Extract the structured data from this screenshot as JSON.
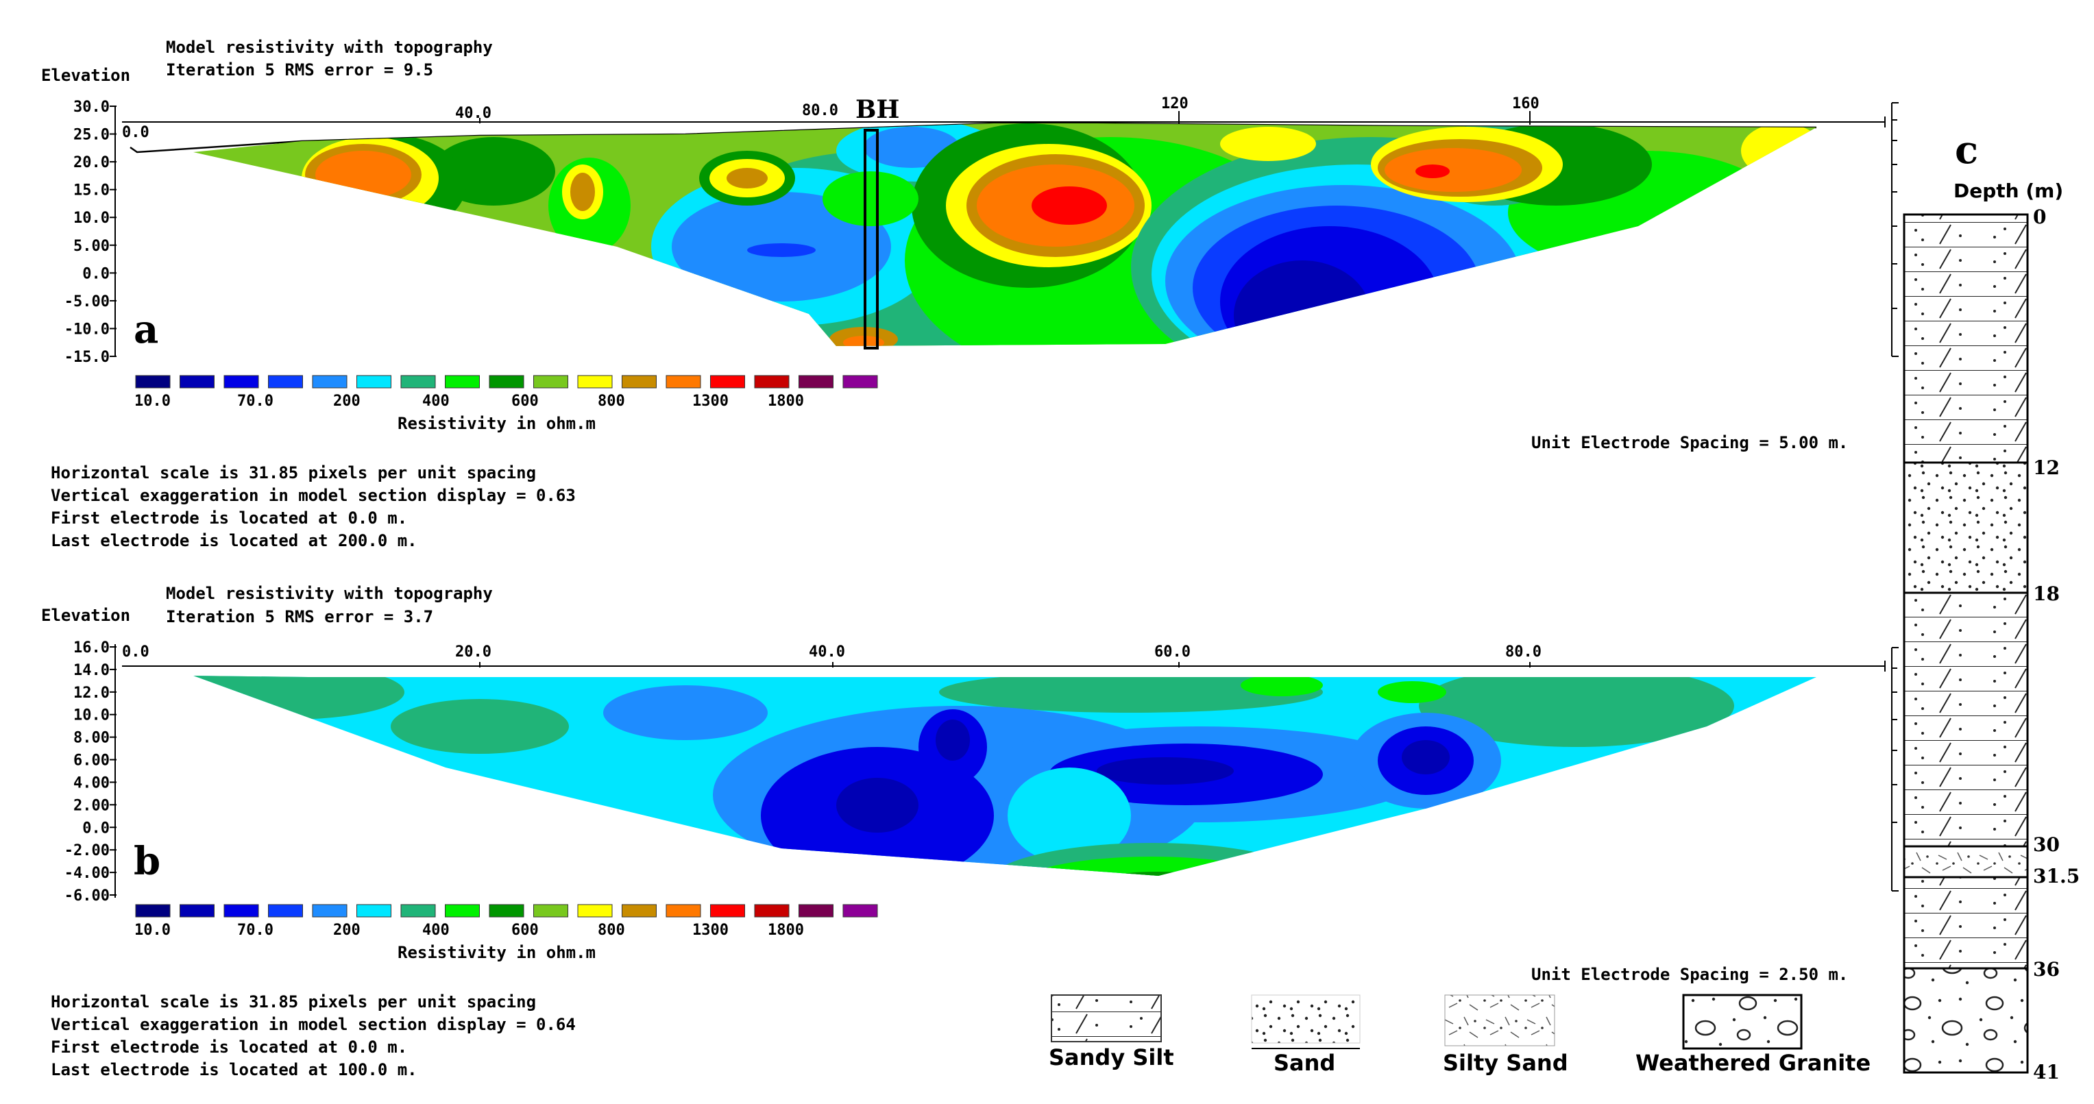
{
  "panel_a": {
    "letter": "a",
    "title": "Model resistivity with topography",
    "iteration": "Iteration 5 RMS error = 9.5",
    "elev_label": "Elevation",
    "y_ticks": [
      "30.0",
      "25.0",
      "20.0",
      "15.0",
      "10.0",
      "5.00",
      "0.0",
      "-5.00",
      "-10.0",
      "-15.0"
    ],
    "x_ticks": [
      "0.0",
      "40.0",
      "80.0",
      "120",
      "160"
    ],
    "bh_label": "BH",
    "cb_labels": [
      "10.0",
      "70.0",
      "200",
      "400",
      "600",
      "800",
      "1300",
      "1800"
    ],
    "cb_title": "Resistivity in ohm.m",
    "spacing": "Unit Electrode Spacing = 5.00 m.",
    "info": [
      "Horizontal scale is 31.85 pixels per unit spacing",
      "Vertical exaggeration in model section display = 0.63",
      "First electrode is located at 0.0  m.",
      "Last electrode is located at 200.0 m."
    ]
  },
  "panel_b": {
    "letter": "b",
    "title": "Model resistivity with topography",
    "iteration": "Iteration 5 RMS error = 3.7",
    "elev_label": "Elevation",
    "y_ticks": [
      "16.0",
      "14.0",
      "12.0",
      "10.0",
      "8.00",
      "6.00",
      "4.00",
      "2.00",
      "0.0",
      "-2.00",
      "-4.00",
      "-6.00"
    ],
    "x_ticks": [
      "0.0",
      "20.0",
      "40.0",
      "60.0",
      "80.0"
    ],
    "cb_labels": [
      "10.0",
      "70.0",
      "200",
      "400",
      "600",
      "800",
      "1300",
      "1800"
    ],
    "cb_title": "Resistivity in ohm.m",
    "spacing": "Unit Electrode Spacing = 2.50 m.",
    "info": [
      "Horizontal scale is 31.85 pixels per unit spacing",
      "Vertical exaggeration in model section display = 0.64",
      "First electrode is located at 0.0  m.",
      "Last electrode is located at 100.0 m."
    ]
  },
  "colorbar_colors": [
    "#000080",
    "#0000b4",
    "#0000e6",
    "#0a3cff",
    "#1e8cff",
    "#00e6ff",
    "#20b478",
    "#00f000",
    "#009600",
    "#78c81e",
    "#ffff00",
    "#c88c00",
    "#ff7800",
    "#ff0000",
    "#c80000",
    "#780050",
    "#8c0096"
  ],
  "log": {
    "letter": "c",
    "depth_title": "Depth (m)",
    "depths": [
      "0",
      "12",
      "18",
      "30",
      "31.5",
      "36",
      "41"
    ]
  },
  "legend": [
    "Sandy Silt",
    "Sand",
    "Silty Sand",
    "Weathered Granite"
  ]
}
